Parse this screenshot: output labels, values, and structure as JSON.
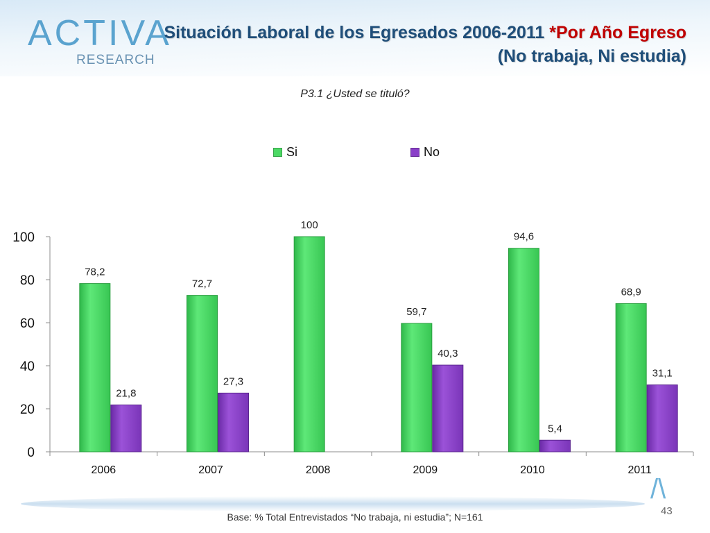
{
  "logo": {
    "brand": "ACTIVA",
    "sub": "RESEARCH"
  },
  "header": {
    "title_main": "Situación Laboral de los Egresados 2006-2011 ",
    "title_accent": "*Por Año Egreso",
    "subtitle": "(No trabaja, Ni estudia)"
  },
  "question": "P3.1 ¿Usted se tituló?",
  "chart_data": {
    "type": "bar",
    "categories": [
      "2006",
      "2007",
      "2008",
      "2009",
      "2010",
      "2011"
    ],
    "series": [
      {
        "name": "Si",
        "color": "#4cd964",
        "values": [
          78.2,
          72.7,
          100,
          59.7,
          94.6,
          68.9
        ],
        "labels": [
          "78,2",
          "72,7",
          "100",
          "59,7",
          "94,6",
          "68,9"
        ]
      },
      {
        "name": "No",
        "color": "#8a3fc8",
        "values": [
          21.8,
          27.3,
          null,
          40.3,
          5.4,
          31.1
        ],
        "labels": [
          "21,8",
          "27,3",
          "",
          "40,3",
          "5,4",
          "31,1"
        ]
      }
    ],
    "ylim": [
      0,
      100
    ],
    "yticks": [
      0,
      20,
      40,
      60,
      80,
      100
    ],
    "legend": "top",
    "grid": false
  },
  "footer": {
    "base": "Base: % Total Entrevistados “No trabaja, ni estudia”; N=161",
    "page": "43"
  }
}
